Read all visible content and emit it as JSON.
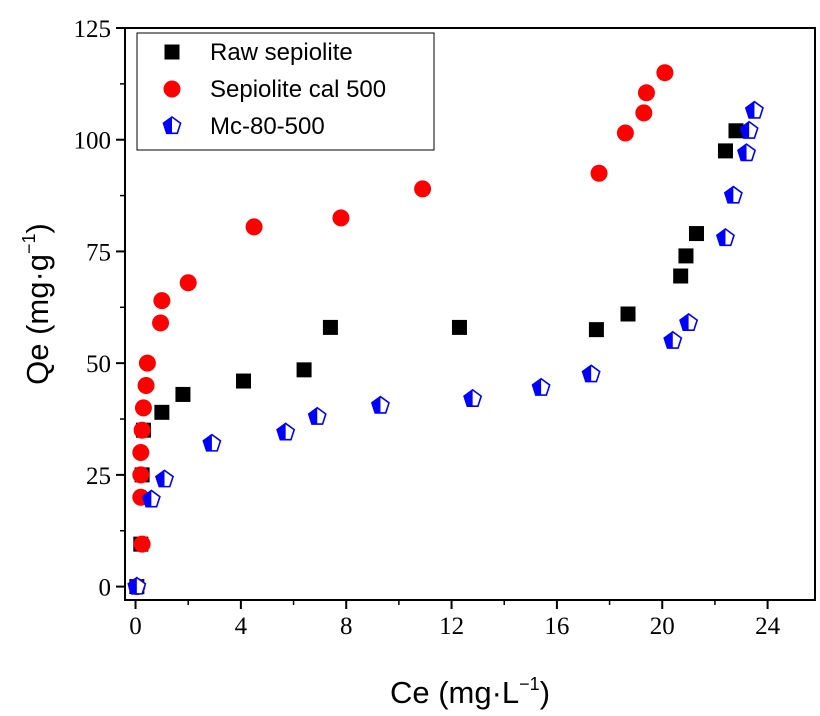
{
  "chart_data": {
    "type": "scatter",
    "title": "",
    "xlabel": "Ce (mg·L",
    "xlabel_sup": "−1",
    "xlabel_tail": ")",
    "ylabel": "Qe (mg·g",
    "ylabel_sup": "−1",
    "ylabel_tail": ")",
    "xlim": [
      -0.4,
      25.8
    ],
    "ylim": [
      -3,
      125
    ],
    "x_ticks": [
      0,
      4,
      8,
      12,
      16,
      20,
      24
    ],
    "y_ticks": [
      0,
      25,
      50,
      75,
      100,
      125
    ],
    "grid": false,
    "legend_position": "top-left",
    "series": [
      {
        "name": "Raw sepiolite",
        "marker": "square",
        "color": "#000000",
        "x": [
          0.05,
          0.2,
          0.25,
          0.3,
          1.0,
          1.8,
          4.1,
          6.4,
          7.4,
          12.3,
          17.5,
          18.7,
          20.7,
          20.9,
          21.3,
          22.4,
          22.8
        ],
        "y": [
          0,
          9.5,
          25,
          35,
          39,
          43,
          46,
          48.5,
          58,
          58,
          57.5,
          61,
          69.5,
          74,
          79,
          97.5,
          102
        ]
      },
      {
        "name": "Sepiolite cal 500",
        "marker": "circle",
        "color": "#ff0000",
        "x": [
          0.05,
          0.25,
          0.2,
          0.2,
          0.2,
          0.25,
          0.3,
          0.4,
          0.45,
          0.95,
          1.0,
          2.0,
          4.5,
          7.8,
          10.9,
          17.6,
          18.6,
          19.3,
          19.4,
          20.1
        ],
        "y": [
          0,
          9.5,
          20,
          25,
          30,
          35,
          40,
          45,
          50,
          59,
          64,
          68,
          80.5,
          82.5,
          89,
          92.5,
          101.5,
          106,
          110.5,
          115
        ]
      },
      {
        "name": "Mc-80-500",
        "marker": "pentagon",
        "color": "#0000ff",
        "x": [
          0.05,
          0.6,
          1.1,
          2.9,
          5.7,
          6.9,
          9.3,
          12.8,
          15.4,
          17.3,
          20.4,
          21.0,
          22.4,
          22.7,
          23.2,
          23.3,
          23.5
        ],
        "y": [
          0,
          19.5,
          24,
          32,
          34.5,
          38,
          40.5,
          42,
          44.5,
          47.5,
          55,
          59,
          78,
          87.5,
          97,
          102,
          106.5
        ]
      }
    ]
  }
}
